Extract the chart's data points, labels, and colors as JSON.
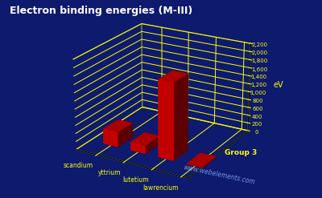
{
  "title": "Electron binding energies (M-III)",
  "title_color": "#ffffff",
  "title_fontsize": 9,
  "background_color": "#0d1a6e",
  "ylabel": "eV",
  "ylabel_color": "#ffff00",
  "elements": [
    "scandium",
    "yttrium",
    "lutetium",
    "lawrencium"
  ],
  "values": [
    372.1,
    205.0,
    1884.8,
    20.0
  ],
  "bar_color": "#dd0000",
  "bar_color_dark": "#aa0000",
  "grid_color": "#ffff00",
  "tick_color": "#ffff00",
  "label_color": "#ffff00",
  "watermark": "www.webelements.com",
  "group_label": "Group 3",
  "ylim": [
    0,
    2200
  ],
  "yticks": [
    0,
    200,
    400,
    600,
    800,
    1000,
    1200,
    1400,
    1600,
    1800,
    2000,
    2200
  ],
  "elev": 22,
  "azim": -60
}
